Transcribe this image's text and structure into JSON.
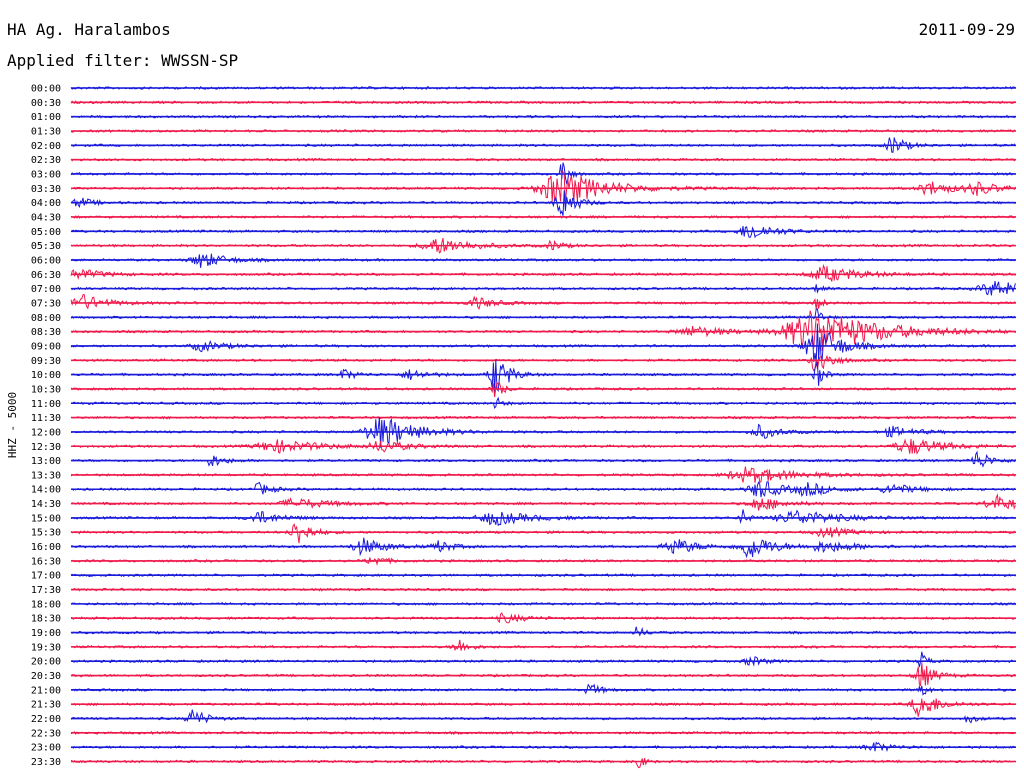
{
  "header": {
    "station": "HA Ag. Haralambos",
    "date": "2011-09-29",
    "filter": "Applied filter: WWSSN-SP"
  },
  "chart_data": {
    "type": "helicorder",
    "channel_label": "HHZ - 5000",
    "colors": [
      "#1a1adb",
      "#f0194b"
    ],
    "lines": [
      {
        "label": "00:00",
        "events": []
      },
      {
        "label": "00:30",
        "events": []
      },
      {
        "label": "01:00",
        "events": []
      },
      {
        "label": "01:30",
        "events": []
      },
      {
        "label": "02:00",
        "events": [
          [
            0.87,
            10,
            0.01
          ]
        ]
      },
      {
        "label": "02:30",
        "events": []
      },
      {
        "label": "03:00",
        "events": [
          [
            0.52,
            28,
            0.003
          ]
        ]
      },
      {
        "label": "03:30",
        "events": [
          [
            0.52,
            18,
            0.04
          ],
          [
            0.91,
            7,
            0.02
          ],
          [
            0.96,
            6,
            0.02
          ]
        ]
      },
      {
        "label": "04:00",
        "events": [
          [
            0.52,
            18,
            0.01
          ],
          [
            0.01,
            5,
            0.01
          ]
        ]
      },
      {
        "label": "04:30",
        "events": []
      },
      {
        "label": "05:00",
        "events": [
          [
            0.72,
            9,
            0.02
          ]
        ]
      },
      {
        "label": "05:30",
        "events": [
          [
            0.39,
            8,
            0.03
          ],
          [
            0.51,
            5,
            0.008
          ]
        ]
      },
      {
        "label": "06:00",
        "events": [
          [
            0.14,
            8,
            0.02
          ]
        ]
      },
      {
        "label": "06:30",
        "events": [
          [
            0.8,
            8,
            0.03
          ],
          [
            0.01,
            5,
            0.02
          ]
        ]
      },
      {
        "label": "07:00",
        "events": [
          [
            0.98,
            8,
            0.03
          ],
          [
            0.79,
            6,
            0.003
          ]
        ]
      },
      {
        "label": "07:30",
        "events": [
          [
            0.01,
            9,
            0.02
          ],
          [
            0.43,
            6,
            0.015
          ],
          [
            0.79,
            8,
            0.003
          ]
        ]
      },
      {
        "label": "08:00",
        "events": [
          [
            0.79,
            10,
            0.003
          ]
        ]
      },
      {
        "label": "08:30",
        "events": [
          [
            0.79,
            22,
            0.06
          ],
          [
            0.66,
            5,
            0.03
          ]
        ]
      },
      {
        "label": "09:00",
        "events": [
          [
            0.79,
            22,
            0.02
          ],
          [
            0.14,
            5,
            0.02
          ]
        ]
      },
      {
        "label": "09:30",
        "events": [
          [
            0.79,
            16,
            0.01
          ]
        ]
      },
      {
        "label": "10:00",
        "events": [
          [
            0.45,
            22,
            0.01
          ],
          [
            0.29,
            5,
            0.01
          ],
          [
            0.36,
            5,
            0.015
          ],
          [
            0.79,
            14,
            0.004
          ]
        ]
      },
      {
        "label": "10:30",
        "events": [
          [
            0.45,
            10,
            0.005
          ]
        ]
      },
      {
        "label": "11:00",
        "events": [
          [
            0.45,
            6,
            0.004
          ]
        ]
      },
      {
        "label": "11:30",
        "events": []
      },
      {
        "label": "12:00",
        "events": [
          [
            0.33,
            16,
            0.03
          ],
          [
            0.73,
            7,
            0.015
          ],
          [
            0.87,
            5,
            0.02
          ]
        ]
      },
      {
        "label": "12:30",
        "events": [
          [
            0.22,
            6,
            0.04
          ],
          [
            0.33,
            6,
            0.02
          ],
          [
            0.89,
            8,
            0.03
          ]
        ]
      },
      {
        "label": "13:00",
        "events": [
          [
            0.96,
            10,
            0.01
          ],
          [
            0.15,
            6,
            0.01
          ]
        ]
      },
      {
        "label": "13:30",
        "events": [
          [
            0.72,
            8,
            0.04
          ]
        ]
      },
      {
        "label": "14:00",
        "events": [
          [
            0.73,
            9,
            0.02
          ],
          [
            0.2,
            6,
            0.01
          ],
          [
            0.78,
            6,
            0.02
          ],
          [
            0.87,
            5,
            0.02
          ]
        ]
      },
      {
        "label": "14:30",
        "events": [
          [
            0.73,
            7,
            0.02
          ],
          [
            0.98,
            8,
            0.02
          ],
          [
            0.24,
            5,
            0.03
          ]
        ]
      },
      {
        "label": "15:00",
        "events": [
          [
            0.45,
            7,
            0.03
          ],
          [
            0.2,
            6,
            0.02
          ],
          [
            0.77,
            7,
            0.04
          ],
          [
            0.71,
            10,
            0.003
          ]
        ]
      },
      {
        "label": "15:30",
        "events": [
          [
            0.24,
            14,
            0.01
          ],
          [
            0.8,
            5,
            0.02
          ]
        ]
      },
      {
        "label": "16:00",
        "events": [
          [
            0.72,
            12,
            0.02
          ],
          [
            0.31,
            8,
            0.02
          ],
          [
            0.64,
            8,
            0.02
          ],
          [
            0.39,
            6,
            0.01
          ],
          [
            0.8,
            5,
            0.03
          ]
        ]
      },
      {
        "label": "16:30",
        "events": [
          [
            0.32,
            5,
            0.01
          ]
        ]
      },
      {
        "label": "17:00",
        "events": []
      },
      {
        "label": "17:30",
        "events": []
      },
      {
        "label": "18:00",
        "events": []
      },
      {
        "label": "18:30",
        "events": [
          [
            0.46,
            5,
            0.015
          ]
        ]
      },
      {
        "label": "19:00",
        "events": [
          [
            0.6,
            6,
            0.005
          ]
        ]
      },
      {
        "label": "19:30",
        "events": [
          [
            0.41,
            8,
            0.008
          ]
        ]
      },
      {
        "label": "20:00",
        "events": [
          [
            0.9,
            10,
            0.003
          ],
          [
            0.72,
            5,
            0.01
          ]
        ]
      },
      {
        "label": "20:30",
        "events": [
          [
            0.9,
            14,
            0.01
          ]
        ]
      },
      {
        "label": "21:00",
        "events": [
          [
            0.55,
            6,
            0.008
          ],
          [
            0.9,
            8,
            0.003
          ]
        ]
      },
      {
        "label": "21:30",
        "events": [
          [
            0.9,
            14,
            0.015
          ]
        ]
      },
      {
        "label": "22:00",
        "events": [
          [
            0.13,
            10,
            0.01
          ],
          [
            0.95,
            5,
            0.005
          ]
        ]
      },
      {
        "label": "22:30",
        "events": []
      },
      {
        "label": "23:00",
        "events": [
          [
            0.85,
            5,
            0.015
          ]
        ]
      },
      {
        "label": "23:30",
        "events": [
          [
            0.6,
            10,
            0.003
          ]
        ]
      }
    ]
  }
}
